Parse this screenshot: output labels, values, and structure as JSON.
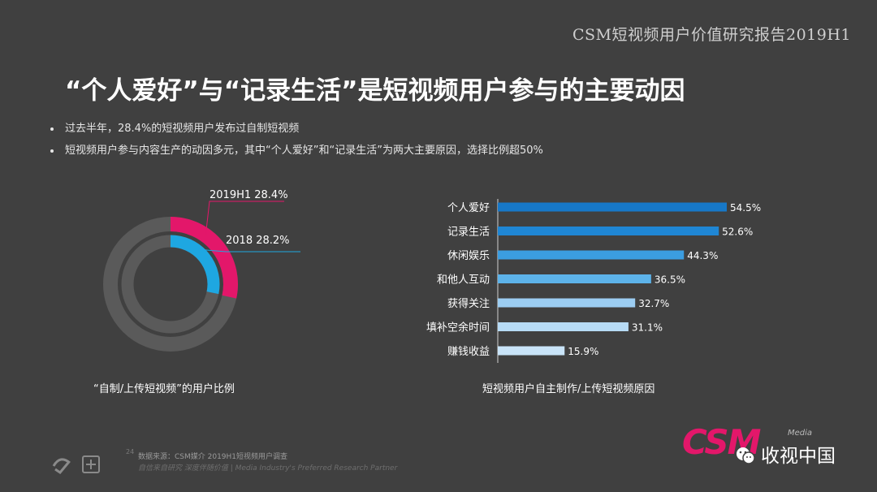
{
  "header": {
    "brand": "CSM短视频用户价值研究报告2019H1"
  },
  "title": "“个人爱好”与“记录生活”是短视频用户参与的主要动因",
  "bullets": [
    "过去半年，28.4%的短视频用户发布过自制短视频",
    "短视频用户参与内容生产的动因多元，其中“个人爱好”和“记录生活”为两大主要原因，选择比例超50%"
  ],
  "chart_data": [
    {
      "type": "donut",
      "title": "“自制/上传短视频”的用户比例",
      "series": [
        {
          "name": "2019H1",
          "value": 28.4,
          "label": "2019H1 28.4%",
          "color": "#e3176a"
        },
        {
          "name": "2018",
          "value": 28.2,
          "label": "2018 28.2%",
          "color": "#1ea7e1"
        }
      ],
      "track_color": "#5a5a5a"
    },
    {
      "type": "bar",
      "orientation": "horizontal",
      "title": "短视频用户自主制作/上传短视频原因",
      "categories": [
        "个人爱好",
        "记录生活",
        "休闲娱乐",
        "和他人互动",
        "获得关注",
        "填补空余时间",
        "赚钱收益"
      ],
      "values": [
        54.5,
        52.6,
        44.3,
        36.5,
        32.7,
        31.1,
        15.9
      ],
      "value_labels": [
        "54.5%",
        "52.6%",
        "44.3%",
        "36.5%",
        "32.7%",
        "31.1%",
        "15.9%"
      ],
      "colors": [
        "#1778c8",
        "#1f86d4",
        "#3b9de0",
        "#5db3ea",
        "#9ccdf2",
        "#b7dbf5",
        "#c9e4f8"
      ],
      "xlim": [
        0,
        54.5
      ]
    }
  ],
  "footer": {
    "page": "24",
    "source": "数据来源：CSM媒介 2019H1短视频用户调查",
    "tagline": "自信来自研究  深度伴随价值 | Media Industry's Preferred Research Partner"
  },
  "logos": {
    "csm": "CSM",
    "csm_sub": "Media",
    "wechat": "收视中国"
  }
}
